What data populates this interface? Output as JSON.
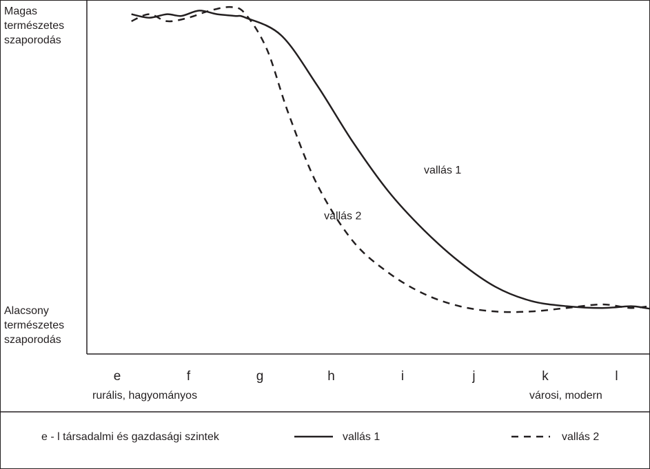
{
  "chart_data": {
    "type": "line",
    "y_top_label": [
      "Magas",
      "természetes",
      "szaporodás"
    ],
    "y_bottom_label": [
      "Alacsony",
      "természetes",
      "szaporodás"
    ],
    "categories": [
      "e",
      "f",
      "g",
      "h",
      "i",
      "j",
      "k",
      "l"
    ],
    "x_left_label": "rurális, hagyományos",
    "x_right_label": "városi, modern",
    "series": [
      {
        "name": "vallás 1",
        "style": "solid",
        "x": [
          0.2,
          0.45,
          0.7,
          0.9,
          1.15,
          1.4,
          1.65,
          1.8,
          2.3,
          2.8,
          3.3,
          3.8,
          4.3,
          4.8,
          5.3,
          5.8,
          6.3,
          6.8,
          7.2,
          7.4,
          7.7
        ],
        "y": [
          9.6,
          9.5,
          9.6,
          9.55,
          9.7,
          9.6,
          9.55,
          9.5,
          9.0,
          7.6,
          6.0,
          4.6,
          3.5,
          2.6,
          1.9,
          1.5,
          1.35,
          1.3,
          1.35,
          1.3,
          1.2
        ]
      },
      {
        "name": "vallás 2",
        "style": "dashed",
        "x": [
          0.2,
          0.45,
          0.7,
          1.0,
          1.3,
          1.6,
          1.8,
          2.1,
          2.4,
          2.8,
          3.3,
          3.8,
          4.3,
          4.8,
          5.3,
          5.8,
          6.3,
          6.8,
          7.2,
          7.5,
          7.7
        ],
        "y": [
          9.4,
          9.6,
          9.4,
          9.5,
          9.7,
          9.8,
          9.6,
          8.6,
          6.8,
          4.8,
          3.2,
          2.3,
          1.7,
          1.35,
          1.2,
          1.2,
          1.3,
          1.4,
          1.3,
          1.35,
          1.25
        ]
      }
    ],
    "annotations": [
      {
        "text": "vallás 1",
        "x": 4.3,
        "y": 5.1
      },
      {
        "text": "vallás 2",
        "x": 2.9,
        "y": 3.8
      }
    ],
    "xlim": [
      0,
      8
    ],
    "ylim": [
      0,
      10
    ],
    "grid": false,
    "legend_position": "bottom"
  },
  "legend": {
    "key_text": "e - l  társadalmi és gazdasági szintek",
    "series1_label": "vallás 1",
    "series2_label": "vallás 2"
  }
}
